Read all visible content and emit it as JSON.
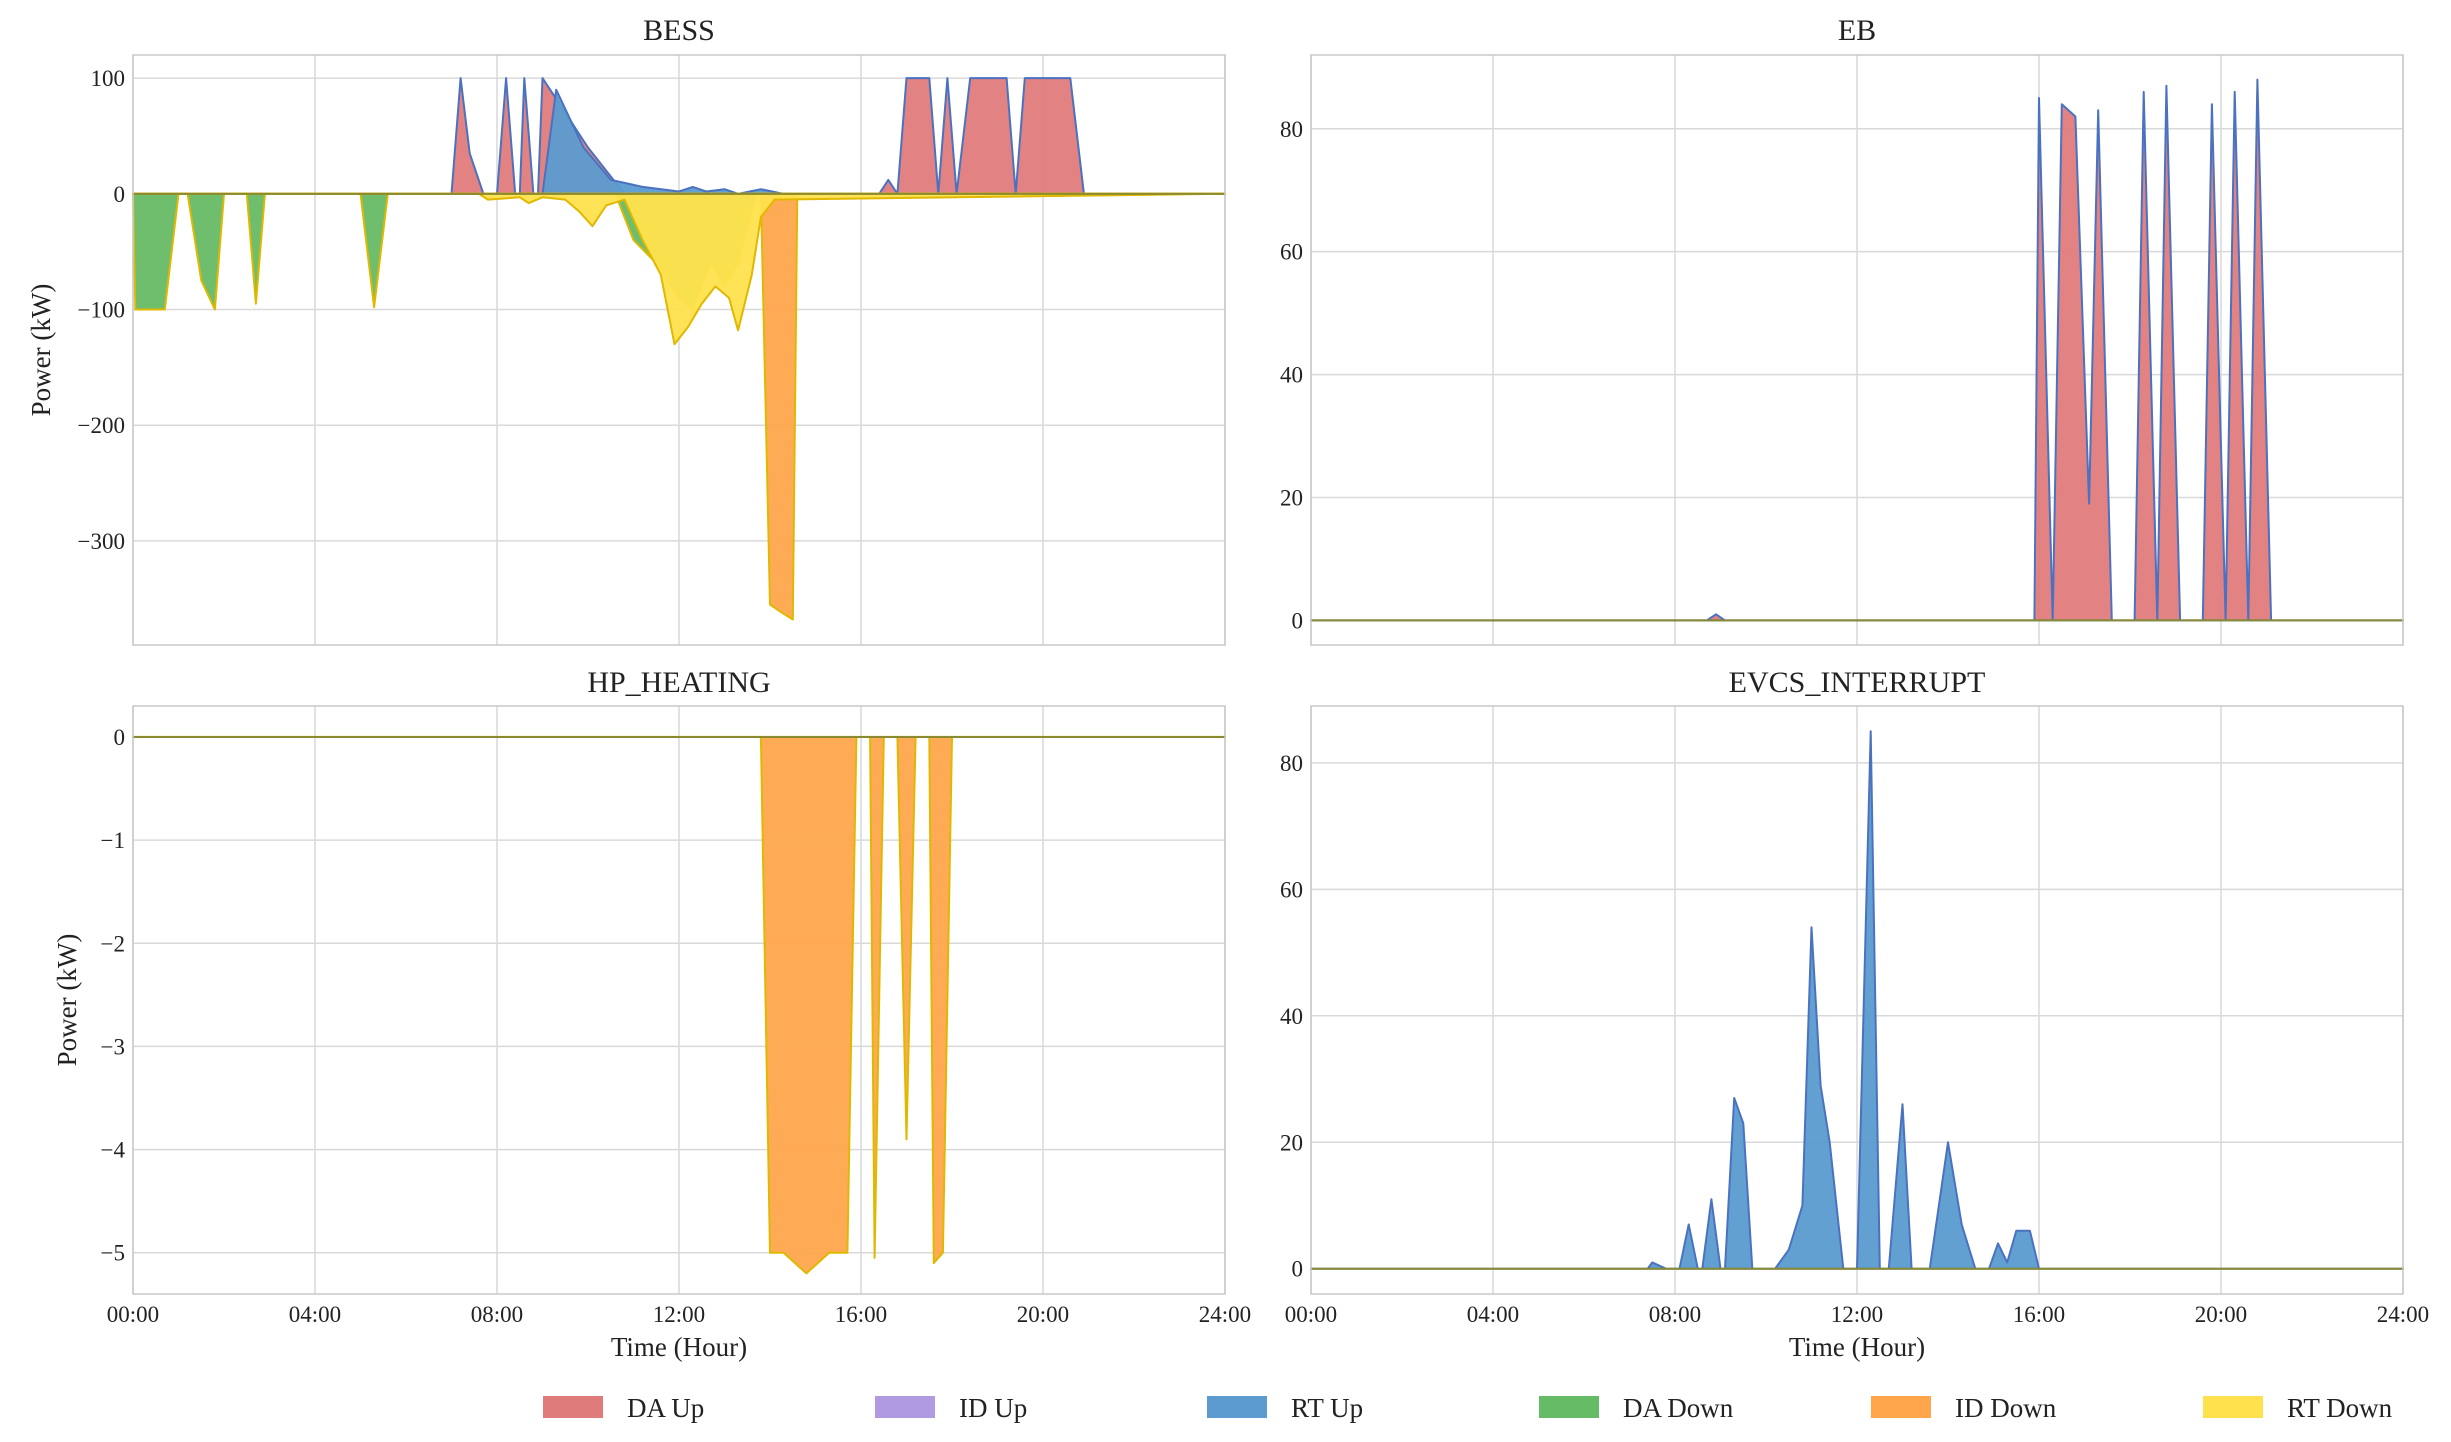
{
  "colors": {
    "DA Up": "#e07b7b",
    "ID Up": "#b09ae0",
    "RT Up": "#5b9bd0",
    "DA Down": "#66bb66",
    "ID Down": "#ffa64d",
    "RT Down": "#ffe14d",
    "RT Up line": "#4a72c0",
    "RT Down line": "#e0b800",
    "zero line": "#8a8a30"
  },
  "legend": [
    "DA Up",
    "ID Up",
    "RT Up",
    "DA Down",
    "ID Down",
    "RT Down"
  ],
  "chart_data": [
    {
      "id": "bess",
      "type": "area",
      "title": "BESS",
      "xlabel": "",
      "ylabel": "Power (kW)",
      "xlim": [
        0,
        24
      ],
      "ylim": [
        -390,
        120
      ],
      "xticks": [
        "00:00",
        "04:00",
        "08:00",
        "12:00",
        "16:00",
        "20:00",
        "24:00"
      ],
      "show_xtick_labels": false,
      "yticks": [
        -300,
        -200,
        -100,
        0,
        100
      ],
      "ytick_labels": [
        "−300",
        "−200",
        "−100",
        "0",
        "100"
      ],
      "grid": true,
      "series": [
        {
          "name": "DA Up",
          "points": [
            [
              0,
              0
            ],
            [
              7,
              0
            ],
            [
              7.2,
              100
            ],
            [
              7.4,
              35
            ],
            [
              7.7,
              0
            ],
            [
              8,
              0
            ],
            [
              8.2,
              100
            ],
            [
              8.4,
              0
            ],
            [
              8.5,
              0
            ],
            [
              8.6,
              100
            ],
            [
              8.8,
              0
            ],
            [
              8.9,
              0
            ],
            [
              9,
              100
            ],
            [
              9.5,
              70
            ],
            [
              10,
              40
            ],
            [
              10.5,
              15
            ],
            [
              10.8,
              0
            ],
            [
              16.4,
              0
            ],
            [
              16.6,
              12
            ],
            [
              16.8,
              0
            ],
            [
              17,
              100
            ],
            [
              17.5,
              100
            ],
            [
              17.7,
              0
            ],
            [
              17.9,
              100
            ],
            [
              18.1,
              0
            ],
            [
              18.4,
              100
            ],
            [
              19.2,
              100
            ],
            [
              19.4,
              0
            ],
            [
              19.6,
              100
            ],
            [
              20.6,
              100
            ],
            [
              20.9,
              0
            ],
            [
              24,
              0
            ]
          ]
        },
        {
          "name": "RT Up",
          "points": [
            [
              0,
              0
            ],
            [
              9,
              0
            ],
            [
              9.3,
              90
            ],
            [
              9.6,
              65
            ],
            [
              9.9,
              40
            ],
            [
              10.5,
              12
            ],
            [
              11.2,
              6
            ],
            [
              12,
              2
            ],
            [
              12.3,
              6
            ],
            [
              12.6,
              2
            ],
            [
              13,
              4
            ],
            [
              13.3,
              0
            ],
            [
              13.8,
              4
            ],
            [
              14.3,
              0
            ],
            [
              24,
              0
            ]
          ]
        },
        {
          "name": "DA Down",
          "points": [
            [
              0,
              0
            ],
            [
              0.05,
              -100
            ],
            [
              0.7,
              -100
            ],
            [
              1,
              0
            ],
            [
              1.2,
              0
            ],
            [
              1.5,
              -75
            ],
            [
              1.8,
              -100
            ],
            [
              2,
              0
            ],
            [
              2.5,
              0
            ],
            [
              2.7,
              -95
            ],
            [
              2.9,
              0
            ],
            [
              5,
              0
            ],
            [
              5.3,
              -98
            ],
            [
              5.6,
              0
            ],
            [
              10.6,
              0
            ],
            [
              11,
              -40
            ],
            [
              11.5,
              -60
            ],
            [
              12,
              -90
            ],
            [
              12.3,
              -100
            ],
            [
              12.7,
              -60
            ],
            [
              13,
              -80
            ],
            [
              13.3,
              -60
            ],
            [
              13.7,
              0
            ],
            [
              24,
              0
            ]
          ]
        },
        {
          "name": "ID Down",
          "points": [
            [
              0,
              0
            ],
            [
              13.8,
              0
            ],
            [
              14.0,
              -355
            ],
            [
              14.3,
              -363
            ],
            [
              14.5,
              -368
            ],
            [
              14.6,
              0
            ],
            [
              24,
              0
            ]
          ]
        },
        {
          "name": "RT Down",
          "points": [
            [
              0,
              0
            ],
            [
              7.6,
              0
            ],
            [
              7.8,
              -5
            ],
            [
              8.5,
              -3
            ],
            [
              8.7,
              -8
            ],
            [
              9,
              -3
            ],
            [
              9.5,
              -5
            ],
            [
              9.8,
              -15
            ],
            [
              10.1,
              -28
            ],
            [
              10.4,
              -10
            ],
            [
              10.8,
              -5
            ],
            [
              11.2,
              -40
            ],
            [
              11.6,
              -70
            ],
            [
              11.9,
              -130
            ],
            [
              12.2,
              -115
            ],
            [
              12.5,
              -95
            ],
            [
              12.8,
              -80
            ],
            [
              13.1,
              -90
            ],
            [
              13.3,
              -118
            ],
            [
              13.6,
              -70
            ],
            [
              13.8,
              -20
            ],
            [
              14.1,
              -5
            ],
            [
              24,
              0
            ]
          ]
        }
      ]
    },
    {
      "id": "eb",
      "type": "area",
      "title": "EB",
      "xlabel": "",
      "ylabel": "",
      "xlim": [
        0,
        24
      ],
      "ylim": [
        -4,
        92
      ],
      "xticks": [
        "00:00",
        "04:00",
        "08:00",
        "12:00",
        "16:00",
        "20:00",
        "24:00"
      ],
      "show_xtick_labels": false,
      "yticks": [
        0,
        20,
        40,
        60,
        80
      ],
      "ytick_labels": [
        "0",
        "20",
        "40",
        "60",
        "80"
      ],
      "grid": true,
      "series": [
        {
          "name": "DA Up",
          "points": [
            [
              0,
              0
            ],
            [
              8.7,
              0
            ],
            [
              8.9,
              1
            ],
            [
              9.1,
              0
            ],
            [
              15.9,
              0
            ],
            [
              16,
              85
            ],
            [
              16.3,
              0
            ],
            [
              16.5,
              84
            ],
            [
              16.8,
              82
            ],
            [
              17.1,
              19
            ],
            [
              17.3,
              83
            ],
            [
              17.6,
              0
            ],
            [
              18.1,
              0
            ],
            [
              18.3,
              86
            ],
            [
              18.6,
              0
            ],
            [
              18.8,
              87
            ],
            [
              19.1,
              0
            ],
            [
              19.6,
              0
            ],
            [
              19.8,
              84
            ],
            [
              20.1,
              0
            ],
            [
              20.3,
              86
            ],
            [
              20.6,
              0
            ],
            [
              20.8,
              88
            ],
            [
              21.1,
              0
            ],
            [
              24,
              0
            ]
          ]
        }
      ]
    },
    {
      "id": "hp_heating",
      "type": "area",
      "title": "HP_HEATING",
      "xlabel": "Time (Hour)",
      "ylabel": "Power (kW)",
      "xlim": [
        0,
        24
      ],
      "ylim": [
        -5.4,
        0.3
      ],
      "xticks": [
        "00:00",
        "04:00",
        "08:00",
        "12:00",
        "16:00",
        "20:00",
        "24:00"
      ],
      "show_xtick_labels": true,
      "yticks": [
        -5,
        -4,
        -3,
        -2,
        -1,
        0
      ],
      "ytick_labels": [
        "−5",
        "−4",
        "−3",
        "−2",
        "−1",
        "0"
      ],
      "grid": true,
      "series": [
        {
          "name": "ID Down",
          "points": [
            [
              0,
              0
            ],
            [
              13.8,
              0
            ],
            [
              14.0,
              -5
            ],
            [
              14.3,
              -5
            ],
            [
              14.8,
              -5.2
            ],
            [
              15.3,
              -5
            ],
            [
              15.7,
              -5
            ],
            [
              15.9,
              0
            ],
            [
              16.2,
              0
            ],
            [
              16.3,
              -5.05
            ],
            [
              16.5,
              0
            ],
            [
              16.8,
              0
            ],
            [
              17.0,
              -3.9
            ],
            [
              17.2,
              0
            ],
            [
              17.5,
              0
            ],
            [
              17.6,
              -5.1
            ],
            [
              17.8,
              -5.0
            ],
            [
              18.0,
              0
            ],
            [
              24,
              0
            ]
          ]
        }
      ]
    },
    {
      "id": "evcs_interrupt",
      "type": "area",
      "title": "EVCS_INTERRUPT",
      "xlabel": "Time (Hour)",
      "ylabel": "",
      "xlim": [
        0,
        24
      ],
      "ylim": [
        -4,
        89
      ],
      "xticks": [
        "00:00",
        "04:00",
        "08:00",
        "12:00",
        "16:00",
        "20:00",
        "24:00"
      ],
      "show_xtick_labels": true,
      "yticks": [
        0,
        20,
        40,
        60,
        80
      ],
      "ytick_labels": [
        "0",
        "20",
        "40",
        "60",
        "80"
      ],
      "grid": true,
      "series": [
        {
          "name": "RT Up",
          "points": [
            [
              0,
              0
            ],
            [
              7.4,
              0
            ],
            [
              7.5,
              1
            ],
            [
              7.8,
              0
            ],
            [
              8.1,
              0
            ],
            [
              8.3,
              7
            ],
            [
              8.5,
              0
            ],
            [
              8.6,
              0
            ],
            [
              8.8,
              11
            ],
            [
              9.0,
              0
            ],
            [
              9.1,
              0
            ],
            [
              9.3,
              27
            ],
            [
              9.5,
              23
            ],
            [
              9.7,
              0
            ],
            [
              10.2,
              0
            ],
            [
              10.5,
              3
            ],
            [
              10.8,
              10
            ],
            [
              11.0,
              54
            ],
            [
              11.2,
              29
            ],
            [
              11.4,
              20
            ],
            [
              11.7,
              0
            ],
            [
              12.0,
              0
            ],
            [
              12.3,
              85
            ],
            [
              12.5,
              0
            ],
            [
              12.7,
              0
            ],
            [
              13.0,
              26
            ],
            [
              13.2,
              0
            ],
            [
              13.6,
              0
            ],
            [
              14.0,
              20
            ],
            [
              14.3,
              7
            ],
            [
              14.6,
              0
            ],
            [
              14.9,
              0
            ],
            [
              15.1,
              4
            ],
            [
              15.3,
              1
            ],
            [
              15.5,
              6
            ],
            [
              15.8,
              6
            ],
            [
              16.0,
              0
            ],
            [
              24,
              0
            ]
          ]
        }
      ]
    }
  ]
}
